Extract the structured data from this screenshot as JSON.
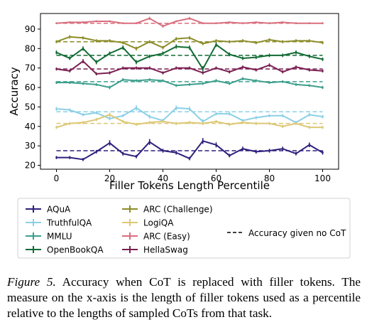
{
  "chart_data": {
    "type": "line",
    "xlabel": "Filler Tokens Length Percentile",
    "ylabel": "Accuracy",
    "xlim": [
      -6,
      106
    ],
    "ylim": [
      18,
      98
    ],
    "xticks": [
      0,
      20,
      40,
      60,
      80,
      100
    ],
    "yticks": [
      20,
      30,
      40,
      50,
      60,
      70,
      80,
      90
    ],
    "grid": false,
    "legend_position": "below",
    "baseline_legend_label": "Accuracy given no CoT",
    "x": [
      0,
      5,
      10,
      15,
      20,
      25,
      30,
      35,
      40,
      45,
      50,
      55,
      60,
      65,
      70,
      75,
      80,
      85,
      90,
      95,
      100
    ],
    "series": [
      {
        "name": "AQuA",
        "color": "#2e1f7d",
        "baseline": 27.5,
        "values": [
          24,
          24,
          23,
          27,
          31.5,
          26,
          24.5,
          32,
          27.5,
          26.5,
          23.5,
          32.5,
          30.5,
          25,
          28.5,
          27,
          27.5,
          28.5,
          26,
          30.5,
          26.5
        ],
        "errors": [
          0.8,
          0.8,
          0.8,
          0.9,
          1.4,
          1.0,
          0.9,
          1.5,
          1.0,
          1.0,
          0.9,
          1.5,
          1.3,
          0.9,
          1.1,
          1.0,
          1.0,
          1.1,
          0.9,
          1.2,
          1.0
        ]
      },
      {
        "name": "TruthfulQA",
        "color": "#8bd0e6",
        "baseline": 47.5,
        "values": [
          49,
          48.5,
          46,
          47,
          44,
          45.5,
          49.5,
          45,
          43,
          49.5,
          49,
          42.5,
          46.5,
          46.5,
          43,
          44.5,
          45.5,
          45.5,
          42,
          46,
          45
        ],
        "errors": [
          1.0,
          0.8,
          0.8,
          0.8,
          0.9,
          0.8,
          1.4,
          1.0,
          0.9,
          1.2,
          1.2,
          1.2,
          0.9,
          0.9,
          0.8,
          0.8,
          0.8,
          0.8,
          0.8,
          0.9,
          0.9
        ]
      },
      {
        "name": "MMLU",
        "color": "#3b9e8c",
        "baseline": 63,
        "values": [
          62.5,
          62.5,
          62,
          61.5,
          60,
          64,
          63.5,
          64,
          63.5,
          61,
          61.5,
          62,
          63.5,
          62,
          64.5,
          63.5,
          62.5,
          63,
          61.5,
          61,
          60
        ],
        "errors": [
          0.7,
          0.7,
          0.7,
          0.7,
          0.9,
          0.8,
          0.7,
          0.7,
          0.7,
          0.7,
          0.7,
          0.7,
          0.8,
          0.7,
          0.8,
          0.7,
          0.7,
          0.7,
          0.7,
          0.7,
          0.8
        ]
      },
      {
        "name": "OpenBookQA",
        "color": "#126b34",
        "baseline": 76.5,
        "values": [
          78,
          75,
          80,
          73,
          77.5,
          80.5,
          73,
          76,
          77.5,
          81,
          80.5,
          69.5,
          82,
          77,
          75,
          75.5,
          76.5,
          76.5,
          78,
          76,
          74.5
        ],
        "errors": [
          1.0,
          0.9,
          1.1,
          1.1,
          1.0,
          1.1,
          1.1,
          0.9,
          1.0,
          1.1,
          1.1,
          1.5,
          1.2,
          1.0,
          0.9,
          0.9,
          0.9,
          0.9,
          1.0,
          0.9,
          0.9
        ]
      },
      {
        "name": "ARC (Challenge)",
        "color": "#8c8c28",
        "baseline": 83.5,
        "values": [
          83.5,
          86,
          85.5,
          84,
          84,
          83,
          80,
          83.5,
          80.5,
          85,
          85.5,
          82.5,
          84,
          83.5,
          84,
          83,
          84.5,
          83.5,
          84,
          84,
          83
        ],
        "errors": [
          0.8,
          0.9,
          0.8,
          0.8,
          0.8,
          0.8,
          1.0,
          0.8,
          0.9,
          0.9,
          0.9,
          0.8,
          0.8,
          0.8,
          0.8,
          0.8,
          0.8,
          0.8,
          0.8,
          0.8,
          0.8
        ]
      },
      {
        "name": "LogiQA",
        "color": "#ddc877",
        "baseline": 41.5,
        "values": [
          39.5,
          41.5,
          42,
          43.5,
          46,
          42.5,
          41,
          42,
          42.5,
          41.5,
          42,
          41.5,
          42.5,
          41,
          42,
          41.5,
          41.5,
          40,
          41.5,
          39.5,
          39.5
        ],
        "errors": [
          0.8,
          0.8,
          0.8,
          0.8,
          1.1,
          0.8,
          0.8,
          0.8,
          0.8,
          0.8,
          0.8,
          0.8,
          0.8,
          0.8,
          0.8,
          0.8,
          0.8,
          0.8,
          0.8,
          0.8,
          0.8
        ]
      },
      {
        "name": "ARC (Easy)",
        "color": "#d96e7e",
        "baseline": 93,
        "values": [
          93,
          93.5,
          93.5,
          94,
          94,
          93,
          93,
          95.5,
          91.5,
          94,
          95.5,
          93,
          93,
          93.5,
          93,
          93.5,
          93,
          93.5,
          93,
          93,
          93
        ],
        "errors": [
          0.5,
          0.5,
          0.5,
          0.5,
          0.5,
          0.5,
          0.5,
          0.8,
          0.8,
          0.5,
          0.7,
          0.5,
          0.5,
          0.5,
          0.5,
          0.5,
          0.5,
          0.5,
          0.5,
          0.5,
          0.5
        ]
      },
      {
        "name": "HellaSwag",
        "color": "#7a1f52",
        "baseline": 69.5,
        "values": [
          69.5,
          68.5,
          73.5,
          67,
          67.5,
          70,
          70,
          70,
          67.5,
          70,
          70,
          67.5,
          70,
          68,
          70.5,
          69,
          71.5,
          68,
          70.5,
          69,
          68.5
        ],
        "errors": [
          0.8,
          0.8,
          1.1,
          0.8,
          0.8,
          0.8,
          0.8,
          0.8,
          0.8,
          0.8,
          0.8,
          0.8,
          0.8,
          0.8,
          0.8,
          0.8,
          0.9,
          0.8,
          0.8,
          0.8,
          0.8
        ]
      }
    ]
  },
  "caption": {
    "lead": "Figure 5.",
    "text": " Accuracy when CoT is replaced with filler tokens. The measure on the x-axis is the length of filler tokens used as a percentile relative to the lengths of sampled CoTs from that task."
  }
}
